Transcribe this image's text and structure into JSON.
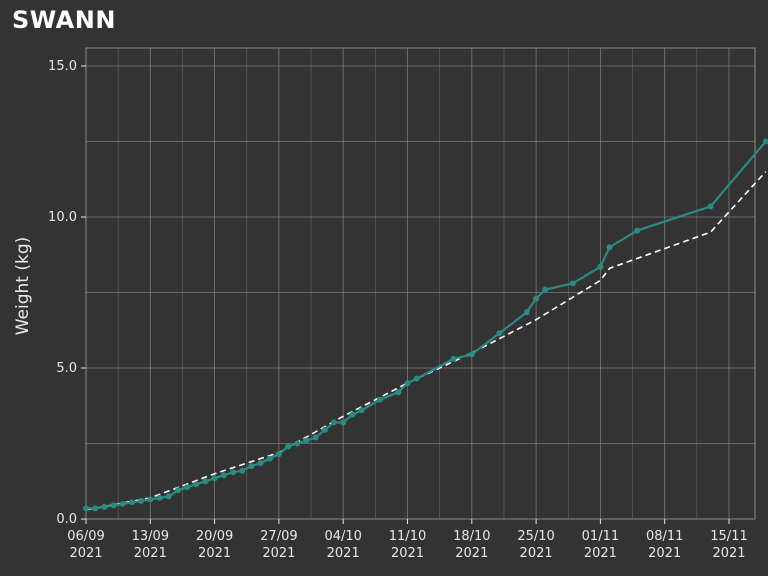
{
  "title": "SWANN",
  "colors": {
    "background": "#333333",
    "grid": "#8a8a8a",
    "series": "#2a8a84",
    "reference": "#ffffff",
    "text": "#e8e8e8"
  },
  "chart_data": {
    "type": "line",
    "title": "SWANN",
    "xlabel": "",
    "ylabel": "Weight (kg)",
    "ylim": [
      0,
      15
    ],
    "y_ticks": [
      "0.0",
      "5.0",
      "10.0",
      "15.0"
    ],
    "y_tick_values": [
      0,
      5,
      10,
      15
    ],
    "xlim": [
      "2021-09-06",
      "2021-11-19"
    ],
    "x_ticks": [
      {
        "date": "2021-09-06",
        "label": "06/09",
        "year": "2021"
      },
      {
        "date": "2021-09-13",
        "label": "13/09",
        "year": "2021"
      },
      {
        "date": "2021-09-20",
        "label": "20/09",
        "year": "2021"
      },
      {
        "date": "2021-09-27",
        "label": "27/09",
        "year": "2021"
      },
      {
        "date": "2021-10-04",
        "label": "04/10",
        "year": "2021"
      },
      {
        "date": "2021-10-11",
        "label": "11/10",
        "year": "2021"
      },
      {
        "date": "2021-10-18",
        "label": "18/10",
        "year": "2021"
      },
      {
        "date": "2021-10-25",
        "label": "25/10",
        "year": "2021"
      },
      {
        "date": "2021-11-01",
        "label": "01/11",
        "year": "2021"
      },
      {
        "date": "2021-11-08",
        "label": "08/11",
        "year": "2021"
      },
      {
        "date": "2021-11-15",
        "label": "15/11",
        "year": "2021"
      }
    ],
    "grid": true,
    "series": [
      {
        "style": "solid-with-markers",
        "color": "#2a8a84",
        "points": [
          [
            "2021-09-06",
            0.35
          ],
          [
            "2021-09-07",
            0.35
          ],
          [
            "2021-09-08",
            0.4
          ],
          [
            "2021-09-09",
            0.45
          ],
          [
            "2021-09-10",
            0.5
          ],
          [
            "2021-09-11",
            0.55
          ],
          [
            "2021-09-12",
            0.6
          ],
          [
            "2021-09-13",
            0.65
          ],
          [
            "2021-09-14",
            0.7
          ],
          [
            "2021-09-15",
            0.75
          ],
          [
            "2021-09-16",
            0.95
          ],
          [
            "2021-09-17",
            1.05
          ],
          [
            "2021-09-18",
            1.15
          ],
          [
            "2021-09-19",
            1.25
          ],
          [
            "2021-09-20",
            1.35
          ],
          [
            "2021-09-21",
            1.45
          ],
          [
            "2021-09-22",
            1.55
          ],
          [
            "2021-09-23",
            1.6
          ],
          [
            "2021-09-24",
            1.75
          ],
          [
            "2021-09-25",
            1.85
          ],
          [
            "2021-09-26",
            2.0
          ],
          [
            "2021-09-27",
            2.15
          ],
          [
            "2021-09-28",
            2.4
          ],
          [
            "2021-09-29",
            2.5
          ],
          [
            "2021-09-30",
            2.6
          ],
          [
            "2021-10-01",
            2.7
          ],
          [
            "2021-10-02",
            2.95
          ],
          [
            "2021-10-03",
            3.2
          ],
          [
            "2021-10-04",
            3.2
          ],
          [
            "2021-10-05",
            3.45
          ],
          [
            "2021-10-06",
            3.6
          ],
          [
            "2021-10-08",
            3.95
          ],
          [
            "2021-10-10",
            4.2
          ],
          [
            "2021-10-11",
            4.5
          ],
          [
            "2021-10-12",
            4.65
          ],
          [
            "2021-10-16",
            5.3
          ],
          [
            "2021-10-18",
            5.45
          ],
          [
            "2021-10-21",
            6.15
          ],
          [
            "2021-10-24",
            6.85
          ],
          [
            "2021-10-25",
            7.3
          ],
          [
            "2021-10-26",
            7.6
          ],
          [
            "2021-10-29",
            7.8
          ],
          [
            "2021-11-01",
            8.35
          ],
          [
            "2021-11-02",
            9.0
          ],
          [
            "2021-11-05",
            9.55
          ],
          [
            "2021-11-13",
            10.35
          ],
          [
            "2021-11-19",
            12.5
          ]
        ]
      },
      {
        "style": "dashed",
        "color": "#ffffff",
        "points": [
          [
            "2021-09-06",
            0.3
          ],
          [
            "2021-09-13",
            0.7
          ],
          [
            "2021-09-20",
            1.5
          ],
          [
            "2021-09-27",
            2.2
          ],
          [
            "2021-10-04",
            3.4
          ],
          [
            "2021-10-11",
            4.5
          ],
          [
            "2021-10-18",
            5.5
          ],
          [
            "2021-10-25",
            6.6
          ],
          [
            "2021-11-01",
            7.9
          ],
          [
            "2021-11-02",
            8.3
          ],
          [
            "2021-11-13",
            9.5
          ],
          [
            "2021-11-19",
            11.5
          ]
        ]
      }
    ]
  }
}
